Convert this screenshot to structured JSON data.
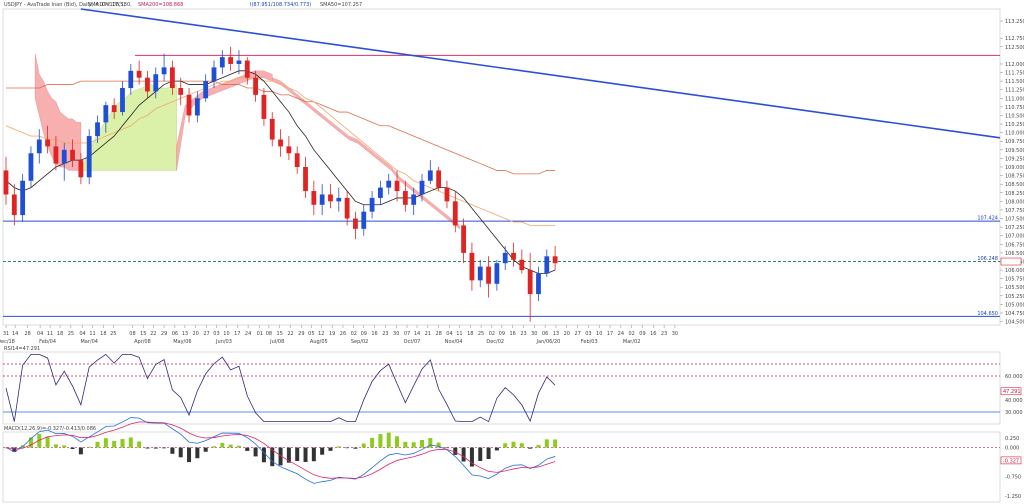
{
  "header": {
    "symbol": "USDJPY - AvaTrade Inan (Bid), Daily, # 172.17(5)",
    "sma10": "SMA10=106.130,",
    "sma200": "SMA200=108.868",
    "ichimoku": "I(87.951/108.734/0.773)",
    "sma50": "SMA50=107.257"
  },
  "indicators": {
    "rsi_label": "RSI14=47.291",
    "rsi_value": "47.291",
    "macd_label": "MACD(12,26,9)=-0.327/-0.413/0.086",
    "macd_value": "-0.327"
  },
  "price_markers": {
    "resistance": "112.250",
    "support_upper": "107.424",
    "current": "106.248",
    "support_lower": "104.650"
  },
  "colors": {
    "bull": "#1f4fd6",
    "bear": "#e02424",
    "cloud_bull": "#d8f0a0",
    "cloud_bear": "#f7a7a7",
    "trend": "#2c4fd8",
    "resistance": "#d6336c",
    "sma200": "#e06b4f",
    "sma50": "#f2a86a",
    "sma10": "#222222",
    "rsi": "#2d2a7a",
    "macd_main": "#1f6fe0",
    "macd_signal": "#e0246a",
    "hist_pos": "#8ccc1e",
    "hist_neg": "#333333"
  },
  "chart_data": {
    "type": "candlestick",
    "ylim": [
      104.4,
      113.6
    ],
    "y_ticks": [
      "113.250",
      "112.750",
      "112.500",
      "112.000",
      "111.750",
      "111.500",
      "111.250",
      "111.000",
      "110.750",
      "110.500",
      "110.250",
      "110.000",
      "109.750",
      "109.500",
      "109.250",
      "109.000",
      "108.750",
      "108.500",
      "108.250",
      "108.000",
      "107.750",
      "107.500",
      "107.250",
      "107.000",
      "106.750",
      "106.500",
      "106.250",
      "106.000",
      "105.750",
      "105.500",
      "105.250",
      "105.000",
      "104.750",
      "104.500"
    ],
    "x_ticks": [
      {
        "label": "31",
        "bar": 0
      },
      {
        "label": "14",
        "bar": 1.1
      },
      {
        "label": "28",
        "bar": 2.6
      },
      {
        "label": "04",
        "bar": 4.1
      },
      {
        "label": "11",
        "bar": 5.3
      },
      {
        "label": "18",
        "bar": 6.5
      },
      {
        "label": "25",
        "bar": 7.8
      },
      {
        "label": "04",
        "bar": 9.2
      },
      {
        "label": "11",
        "bar": 10.4
      },
      {
        "label": "18",
        "bar": 11.7
      },
      {
        "label": "25",
        "bar": 12.9
      },
      {
        "label": "08",
        "bar": 15.2
      },
      {
        "label": "15",
        "bar": 16.5
      },
      {
        "label": "22",
        "bar": 17.7
      },
      {
        "label": "29",
        "bar": 19.0
      },
      {
        "label": "06",
        "bar": 20.3
      },
      {
        "label": "13",
        "bar": 21.5
      },
      {
        "label": "20",
        "bar": 22.8
      },
      {
        "label": "27",
        "bar": 24.1
      },
      {
        "label": "03",
        "bar": 25.3
      },
      {
        "label": "10",
        "bar": 26.5
      },
      {
        "label": "17",
        "bar": 27.8
      },
      {
        "label": "24",
        "bar": 29.1
      },
      {
        "label": "01",
        "bar": 30.5
      },
      {
        "label": "08",
        "bar": 31.6
      },
      {
        "label": "15",
        "bar": 32.9
      },
      {
        "label": "22",
        "bar": 34.2
      },
      {
        "label": "29",
        "bar": 35.5
      },
      {
        "label": "05",
        "bar": 36.7
      },
      {
        "label": "12",
        "bar": 37.9
      },
      {
        "label": "19",
        "bar": 39.2
      },
      {
        "label": "26",
        "bar": 40.5
      },
      {
        "label": "02",
        "bar": 41.8
      },
      {
        "label": "09",
        "bar": 43.0
      },
      {
        "label": "16",
        "bar": 44.3
      },
      {
        "label": "23",
        "bar": 45.6
      },
      {
        "label": "30",
        "bar": 46.9
      },
      {
        "label": "07",
        "bar": 48.2
      },
      {
        "label": "14",
        "bar": 49.4
      },
      {
        "label": "21",
        "bar": 50.7
      },
      {
        "label": "28",
        "bar": 52.0
      },
      {
        "label": "04",
        "bar": 53.3
      },
      {
        "label": "11",
        "bar": 54.5
      },
      {
        "label": "18",
        "bar": 55.8
      },
      {
        "label": "25",
        "bar": 57.1
      },
      {
        "label": "02",
        "bar": 58.4
      },
      {
        "label": "09",
        "bar": 59.6
      },
      {
        "label": "16",
        "bar": 60.9
      },
      {
        "label": "23",
        "bar": 62.2
      },
      {
        "label": "30",
        "bar": 63.5
      },
      {
        "label": "06",
        "bar": 64.8
      },
      {
        "label": "13",
        "bar": 66.1
      },
      {
        "label": "20",
        "bar": 67.4
      },
      {
        "label": "27",
        "bar": 68.7
      },
      {
        "label": "03",
        "bar": 70.0
      },
      {
        "label": "10",
        "bar": 71.3
      },
      {
        "label": "17",
        "bar": 72.6
      },
      {
        "label": "24",
        "bar": 73.9
      },
      {
        "label": "02",
        "bar": 75.2
      },
      {
        "label": "09",
        "bar": 76.5
      },
      {
        "label": "16",
        "bar": 77.8
      },
      {
        "label": "23",
        "bar": 79.1
      },
      {
        "label": "30",
        "bar": 80.4
      }
    ],
    "month_labels": [
      {
        "label": "Dec/18",
        "bar": 0
      },
      {
        "label": "Feb/04",
        "bar": 5.0
      },
      {
        "label": "Mar/04",
        "bar": 10.0
      },
      {
        "label": "Apr/08",
        "bar": 16.4
      },
      {
        "label": "May/06",
        "bar": 21.2
      },
      {
        "label": "Jun/03",
        "bar": 26.2
      },
      {
        "label": "Jul/08",
        "bar": 32.6
      },
      {
        "label": "Aug/05",
        "bar": 37.6
      },
      {
        "label": "Sep/02",
        "bar": 42.5
      },
      {
        "label": "Oct/07",
        "bar": 48.8
      },
      {
        "label": "Nov/04",
        "bar": 53.8
      },
      {
        "label": "Dec/02",
        "bar": 58.8
      },
      {
        "label": "Jan/06/20",
        "bar": 65.2
      },
      {
        "label": "Feb/03",
        "bar": 70.1
      },
      {
        "label": "Mar/02",
        "bar": 75.2
      }
    ],
    "candles": [
      [
        108.9,
        109.3,
        107.9,
        108.2
      ],
      [
        108.2,
        108.5,
        107.3,
        107.6
      ],
      [
        107.6,
        108.8,
        107.4,
        108.6
      ],
      [
        108.6,
        109.6,
        108.4,
        109.4
      ],
      [
        109.4,
        110.1,
        109.1,
        109.8
      ],
      [
        109.8,
        110.2,
        109.4,
        109.6
      ],
      [
        109.6,
        109.9,
        108.9,
        109.1
      ],
      [
        109.1,
        109.7,
        108.6,
        109.5
      ],
      [
        109.5,
        109.8,
        109.0,
        109.2
      ],
      [
        109.2,
        109.4,
        108.5,
        108.7
      ],
      [
        108.7,
        110.1,
        108.5,
        109.9
      ],
      [
        109.9,
        110.5,
        109.7,
        110.3
      ],
      [
        110.3,
        110.9,
        110.0,
        110.8
      ],
      [
        110.8,
        111.0,
        110.4,
        110.6
      ],
      [
        110.6,
        111.5,
        110.5,
        111.3
      ],
      [
        111.3,
        112.0,
        111.1,
        111.8
      ],
      [
        111.8,
        112.1,
        111.4,
        111.6
      ],
      [
        111.6,
        111.8,
        111.0,
        111.2
      ],
      [
        111.2,
        111.9,
        111.0,
        111.7
      ],
      [
        111.7,
        112.3,
        111.5,
        111.9
      ],
      [
        111.9,
        112.1,
        111.1,
        111.3
      ],
      [
        111.3,
        111.6,
        110.8,
        111.1
      ],
      [
        111.1,
        111.3,
        110.3,
        110.5
      ],
      [
        110.5,
        111.2,
        110.3,
        111.0
      ],
      [
        111.0,
        111.7,
        110.9,
        111.5
      ],
      [
        111.5,
        112.1,
        111.3,
        111.9
      ],
      [
        111.9,
        112.4,
        111.7,
        112.2
      ],
      [
        112.2,
        112.5,
        111.8,
        112.0
      ],
      [
        112.0,
        112.4,
        111.7,
        112.1
      ],
      [
        112.1,
        112.2,
        111.4,
        111.6
      ],
      [
        111.6,
        111.8,
        110.9,
        111.1
      ],
      [
        111.1,
        111.3,
        110.2,
        110.4
      ],
      [
        110.4,
        110.6,
        109.6,
        109.8
      ],
      [
        109.8,
        110.1,
        109.3,
        109.6
      ],
      [
        109.6,
        109.9,
        109.2,
        109.4
      ],
      [
        109.4,
        109.6,
        108.8,
        109.0
      ],
      [
        109.0,
        109.3,
        108.1,
        108.3
      ],
      [
        108.3,
        108.6,
        107.6,
        107.9
      ],
      [
        107.9,
        108.5,
        107.6,
        108.2
      ],
      [
        108.2,
        108.5,
        107.8,
        108.0
      ],
      [
        108.0,
        108.4,
        107.7,
        108.1
      ],
      [
        108.1,
        108.3,
        107.3,
        107.5
      ],
      [
        107.5,
        107.7,
        106.9,
        107.2
      ],
      [
        107.2,
        107.9,
        107.0,
        107.7
      ],
      [
        107.7,
        108.3,
        107.5,
        108.1
      ],
      [
        108.1,
        108.6,
        107.9,
        108.4
      ],
      [
        108.4,
        108.8,
        108.2,
        108.6
      ],
      [
        108.6,
        108.9,
        108.0,
        108.3
      ],
      [
        108.3,
        108.6,
        107.7,
        107.9
      ],
      [
        107.9,
        108.4,
        107.6,
        108.2
      ],
      [
        108.2,
        108.8,
        108.0,
        108.6
      ],
      [
        108.6,
        109.2,
        108.5,
        108.9
      ],
      [
        108.9,
        109.0,
        108.3,
        108.4
      ],
      [
        108.4,
        108.6,
        107.8,
        108.0
      ],
      [
        108.0,
        108.3,
        107.1,
        107.3
      ],
      [
        107.3,
        107.5,
        106.2,
        106.5
      ],
      [
        106.5,
        106.8,
        105.4,
        105.7
      ],
      [
        105.7,
        106.3,
        105.5,
        106.1
      ],
      [
        106.1,
        106.4,
        105.2,
        105.6
      ],
      [
        105.6,
        106.3,
        105.4,
        106.2
      ],
      [
        106.2,
        106.7,
        106.0,
        106.5
      ],
      [
        106.5,
        106.8,
        106.1,
        106.3
      ],
      [
        106.3,
        106.6,
        105.9,
        106.0
      ],
      [
        106.0,
        106.5,
        104.5,
        105.3
      ],
      [
        105.3,
        106.1,
        105.1,
        105.9
      ],
      [
        105.9,
        106.6,
        105.8,
        106.4
      ],
      [
        106.4,
        106.7,
        106.0,
        106.2
      ]
    ],
    "sma10": [
      108.6,
      108.4,
      108.3,
      108.4,
      108.6,
      108.8,
      109.0,
      109.1,
      109.2,
      109.2,
      109.3,
      109.5,
      109.7,
      109.9,
      110.2,
      110.5,
      110.8,
      111.0,
      111.2,
      111.4,
      111.5,
      111.5,
      111.4,
      111.4,
      111.4,
      111.5,
      111.6,
      111.7,
      111.8,
      111.8,
      111.7,
      111.5,
      111.2,
      110.9,
      110.6,
      110.2,
      109.9,
      109.5,
      109.2,
      108.9,
      108.6,
      108.3,
      108.0,
      107.9,
      107.9,
      107.9,
      108.0,
      108.1,
      108.1,
      108.1,
      108.2,
      108.3,
      108.4,
      108.4,
      108.3,
      108.1,
      107.8,
      107.5,
      107.2,
      106.9,
      106.6,
      106.3,
      106.1,
      106.0,
      105.9,
      105.9,
      106.0
    ],
    "sma50": [
      110.2,
      110.1,
      110.0,
      109.9,
      109.9,
      109.8,
      109.8,
      109.7,
      109.7,
      109.7,
      109.7,
      109.8,
      109.9,
      110.0,
      110.1,
      110.2,
      110.4,
      110.5,
      110.7,
      110.8,
      110.9,
      111.0,
      111.1,
      111.2,
      111.3,
      111.4,
      111.5,
      111.5,
      111.6,
      111.6,
      111.6,
      111.5,
      111.5,
      111.4,
      111.3,
      111.2,
      111.0,
      110.9,
      110.7,
      110.5,
      110.3,
      110.1,
      109.9,
      109.7,
      109.5,
      109.3,
      109.1,
      108.9,
      108.8,
      108.6,
      108.5,
      108.4,
      108.3,
      108.2,
      108.1,
      108.0,
      107.9,
      107.8,
      107.7,
      107.6,
      107.5,
      107.4,
      107.4,
      107.3,
      107.3,
      107.3,
      107.3
    ],
    "sma200": [
      111.3,
      111.3,
      111.3,
      111.3,
      111.3,
      111.4,
      111.4,
      111.4,
      111.4,
      111.5,
      111.5,
      111.5,
      111.5,
      111.5,
      111.5,
      111.5,
      111.5,
      111.5,
      111.5,
      111.5,
      111.5,
      111.5,
      111.5,
      111.5,
      111.5,
      111.5,
      111.4,
      111.4,
      111.4,
      111.3,
      111.3,
      111.2,
      111.2,
      111.1,
      111.1,
      111.0,
      110.9,
      110.9,
      110.8,
      110.7,
      110.6,
      110.6,
      110.5,
      110.4,
      110.3,
      110.2,
      110.2,
      110.1,
      110.0,
      109.9,
      109.8,
      109.7,
      109.6,
      109.5,
      109.4,
      109.3,
      109.2,
      109.1,
      109.0,
      108.9,
      108.9,
      108.8,
      108.8,
      108.8,
      108.8,
      108.9,
      108.9
    ],
    "cloud": [
      {
        "from": 3.5,
        "to": 9.0,
        "a": [
          112.3,
          111.7,
          111.5,
          111.2,
          111.0,
          110.9,
          110.6,
          110.5,
          110.4,
          110.4,
          110.3,
          110.3
        ],
        "b": [
          111.0,
          110.5,
          110.0,
          109.6,
          109.3,
          109.1,
          109.0,
          109.0,
          108.9,
          108.9,
          108.9,
          108.9
        ]
      },
      {
        "from": 9.0,
        "to": 20.5,
        "a": [
          108.9,
          109.5,
          110.0,
          110.4,
          110.8,
          111.0,
          111.2,
          111.3,
          111.4,
          111.3,
          111.3,
          111.4
        ],
        "b": [
          108.9,
          108.9,
          108.9,
          108.9,
          108.9,
          108.9,
          108.9,
          108.9,
          108.9,
          108.9,
          108.9,
          108.9
        ]
      },
      {
        "from": 20.5,
        "to": 32.0,
        "a": [
          109.6,
          110.8,
          111.0,
          111.2,
          111.3,
          111.4,
          111.5,
          111.6,
          111.7,
          111.8,
          111.8,
          111.7
        ],
        "b": [
          108.9,
          110.5,
          110.8,
          111.0,
          111.1,
          111.2,
          111.3,
          111.4,
          111.5,
          111.6,
          111.6,
          111.5
        ]
      },
      {
        "from": 32.0,
        "to": 54.5,
        "a": [
          111.5,
          111.4,
          111.2,
          111.0,
          110.8,
          110.6,
          110.4,
          110.2,
          110.0,
          109.8,
          109.7,
          109.5,
          109.3,
          109.1,
          108.9,
          108.6,
          108.4,
          108.2,
          108.0,
          107.8,
          107.6,
          107.4,
          107.2
        ],
        "b": [
          111.6,
          111.5,
          111.3,
          111.1,
          110.9,
          110.7,
          110.5,
          110.3,
          110.1,
          109.9,
          109.8,
          109.6,
          109.4,
          109.2,
          109.0,
          108.7,
          108.5,
          108.3,
          108.1,
          107.9,
          107.7,
          107.5,
          107.3
        ]
      }
    ]
  }
}
